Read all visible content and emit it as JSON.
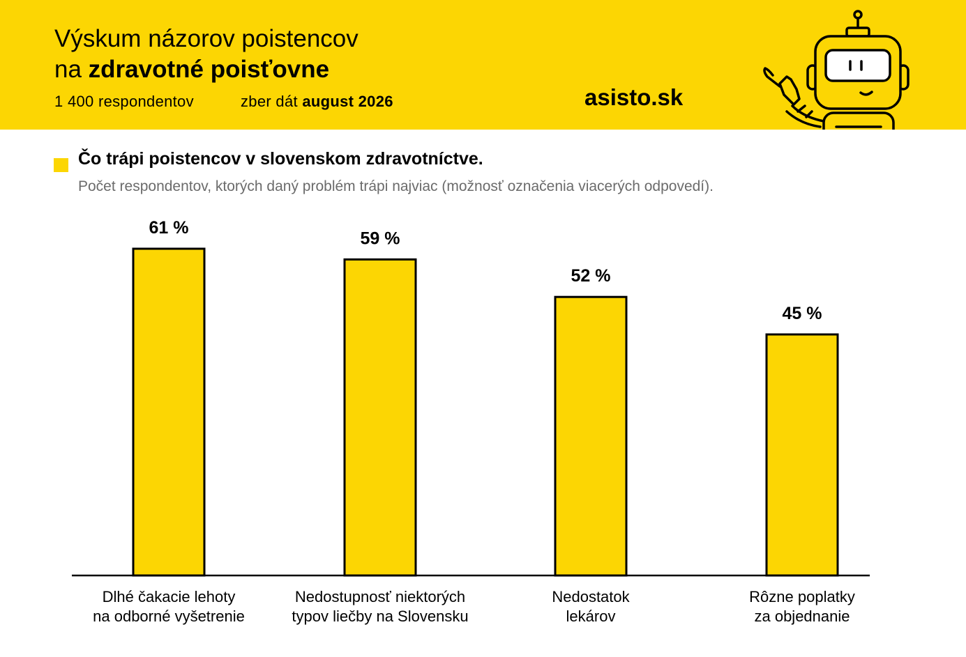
{
  "header": {
    "title_line1": "Výskum názorov poistencov",
    "title_line2_prefix": "na ",
    "title_line2_bold": "zdravotné poisťovne",
    "respondents": "1 400 respondentov",
    "collection_prefix": "zber dát ",
    "collection_date": "august 2026",
    "brand": "asisto.sk",
    "mascot_icon": "robot-mascot-icon",
    "background_color": "#fcd603"
  },
  "chart_data": {
    "type": "bar",
    "title": "Čo trápi poistencov v slovenskom zdravotníctve.",
    "subtitle": "Počet respondentov, ktorých daný problém trápi najviac (možnosť označenia viacerých odpovedí).",
    "categories": [
      [
        "Dlhé čakacie lehoty",
        "na odborné vyšetrenie"
      ],
      [
        "Nedostupnosť niektorých",
        "typov liečby na Slovensku"
      ],
      [
        "Nedostatok",
        "lekárov"
      ],
      [
        "Rôzne poplatky",
        "za objednanie"
      ]
    ],
    "values": [
      61,
      59,
      52,
      45
    ],
    "value_labels": [
      "61 %",
      "59 %",
      "52 %",
      "45 %"
    ],
    "unit": "%",
    "ylim": [
      0,
      61
    ],
    "grid": false,
    "bar_color": "#fcd603",
    "bar_outline_color": "#000000"
  }
}
